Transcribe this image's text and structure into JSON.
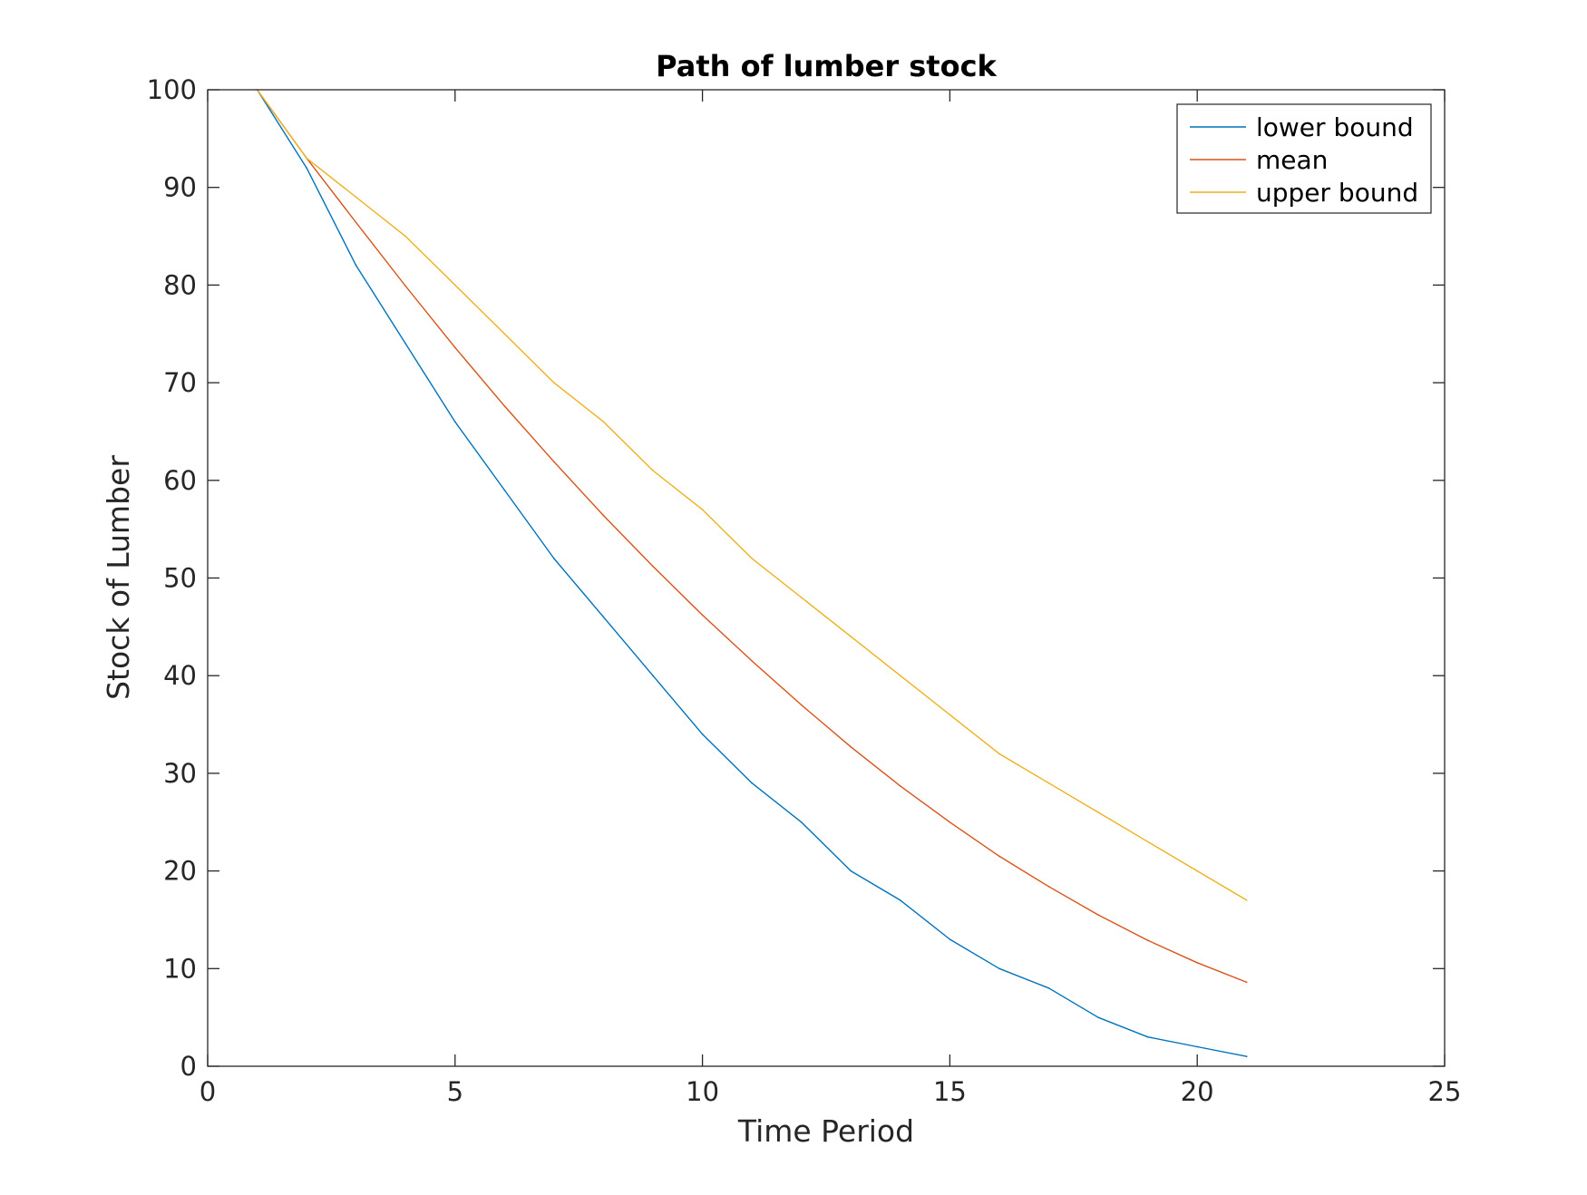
{
  "chart_data": {
    "type": "line",
    "title": "Path of lumber stock",
    "xlabel": "Time Period",
    "ylabel": "Stock of Lumber",
    "xlim": [
      0,
      25
    ],
    "ylim": [
      0,
      100
    ],
    "xticks": [
      0,
      5,
      10,
      15,
      20,
      25
    ],
    "yticks": [
      0,
      10,
      20,
      30,
      40,
      50,
      60,
      70,
      80,
      90,
      100
    ],
    "x": [
      1,
      2,
      3,
      4,
      5,
      6,
      7,
      8,
      9,
      10,
      11,
      12,
      13,
      14,
      15,
      16,
      17,
      18,
      19,
      20,
      21
    ],
    "series": [
      {
        "name": "lower bound",
        "color": "#0072bd",
        "values": [
          100,
          92,
          82,
          74,
          66,
          59,
          52,
          46,
          40,
          34,
          29,
          25,
          20,
          17,
          13,
          10,
          8,
          5,
          3,
          2,
          1
        ]
      },
      {
        "name": "mean",
        "color": "#d95319",
        "values": [
          100,
          93,
          86.4,
          79.9,
          73.6,
          67.6,
          61.9,
          56.4,
          51.2,
          46.2,
          41.5,
          37,
          32.7,
          28.7,
          25,
          21.5,
          18.4,
          15.5,
          12.9,
          10.6,
          8.6
        ]
      },
      {
        "name": "upper bound",
        "color": "#edb120",
        "values": [
          100,
          93,
          89,
          85,
          80,
          75,
          70,
          66,
          61,
          57,
          52,
          48,
          44,
          40,
          36,
          32,
          29,
          26,
          23,
          20,
          17
        ]
      }
    ],
    "grid": false,
    "legend_position": "top-right",
    "box": true
  }
}
